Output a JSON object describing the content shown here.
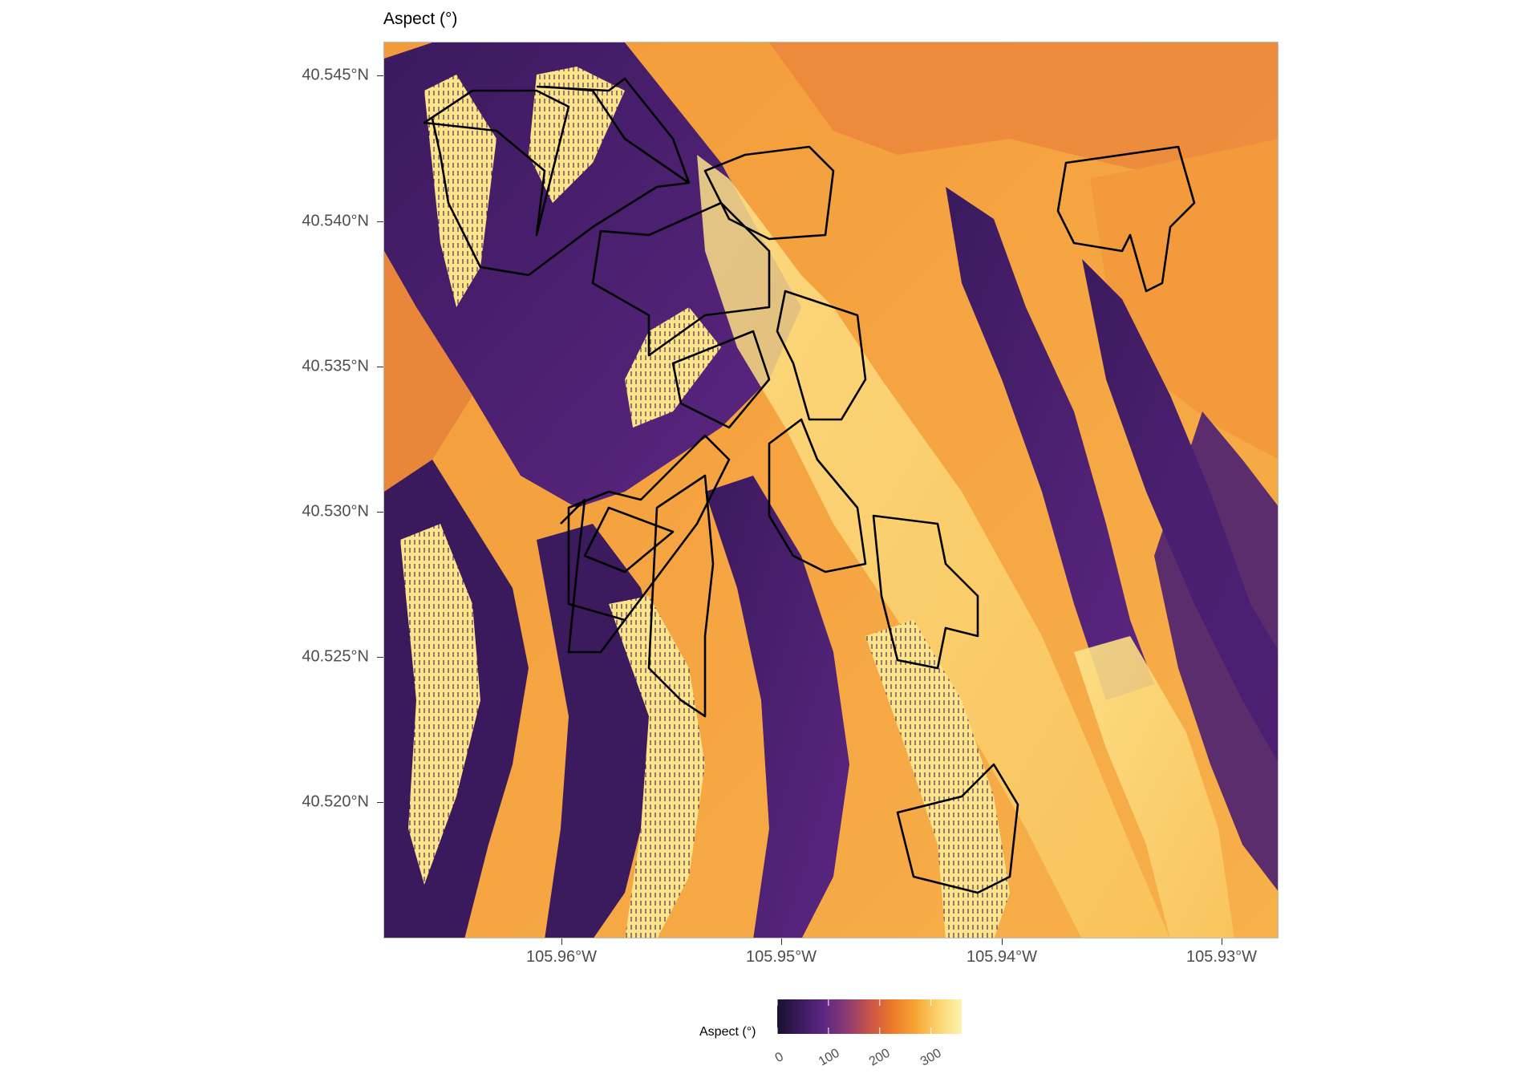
{
  "title": "Aspect (°)",
  "y_axis": {
    "labels": [
      "40.545°N",
      "40.540°N",
      "40.535°N",
      "40.530°N",
      "40.525°N",
      "40.520°N"
    ],
    "values": [
      40.545,
      40.54,
      40.535,
      40.53,
      40.525,
      40.52
    ],
    "range": [
      40.5153,
      40.546
    ]
  },
  "x_axis": {
    "labels": [
      "105.96°W",
      "105.95°W",
      "105.94°W",
      "105.93°W"
    ],
    "values": [
      -105.96,
      -105.95,
      -105.94,
      -105.93
    ],
    "range": [
      -105.9665,
      -105.9258
    ]
  },
  "legend": {
    "title": "Aspect (°)",
    "labels": [
      "0",
      "100",
      "200",
      "300"
    ],
    "values": [
      0,
      100,
      200,
      300
    ],
    "range": [
      0,
      360
    ],
    "colormap": "inferno",
    "colors": [
      "#1a1030",
      "#3b1a5e",
      "#5c2682",
      "#8a3a73",
      "#c8534a",
      "#ec7a2a",
      "#f6a535",
      "#fcd470",
      "#fdf4b0"
    ]
  },
  "raster": {
    "type": "aspect",
    "units": "degrees",
    "background_color": "#f39a3a"
  },
  "overlay": {
    "type": "polygon_outlines",
    "stroke_color": "#000000",
    "count": 14
  }
}
